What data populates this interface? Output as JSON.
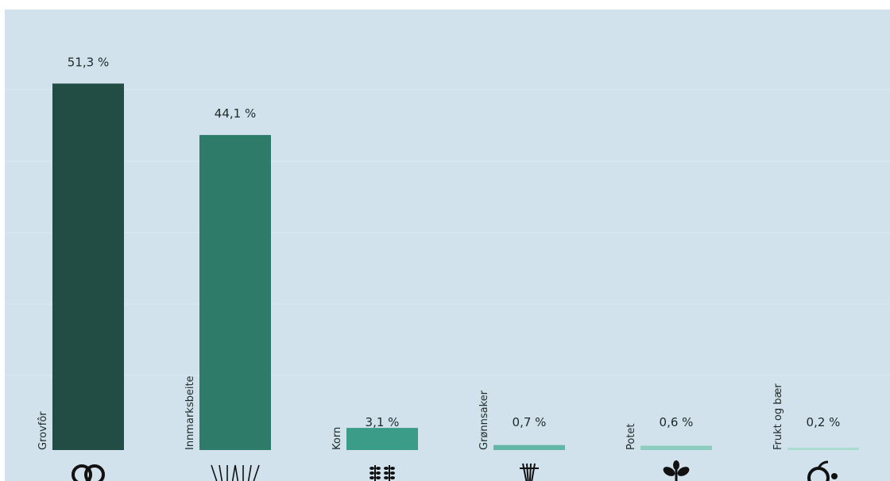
{
  "chart_data": {
    "type": "bar",
    "categories": [
      "Grovfôr",
      "Innmarksbeite",
      "Korn",
      "Grønnsaker",
      "Potet",
      "Frukt og bær"
    ],
    "values": [
      51.3,
      44.1,
      3.1,
      0.7,
      0.6,
      0.2
    ],
    "data_labels": [
      "51,3 %",
      "44,1 %",
      "3,1 %",
      "0,7 %",
      "0,6 %",
      "0,2 %"
    ],
    "icons": [
      "hay-bales-icon",
      "grass-icon",
      "wheat-icon",
      "vegetables-icon",
      "potato-plant-icon",
      "fruit-berry-icon"
    ],
    "ylim": [
      0,
      60
    ],
    "grid": true,
    "colors": {
      "background": "#d1e2ed",
      "gridline": "#dce9f2",
      "bars": [
        "#214d44",
        "#2f7b6a",
        "#3b9c88",
        "#63b6a5",
        "#8ccdbf",
        "#a9dbd0"
      ],
      "icon": "#111111"
    }
  }
}
